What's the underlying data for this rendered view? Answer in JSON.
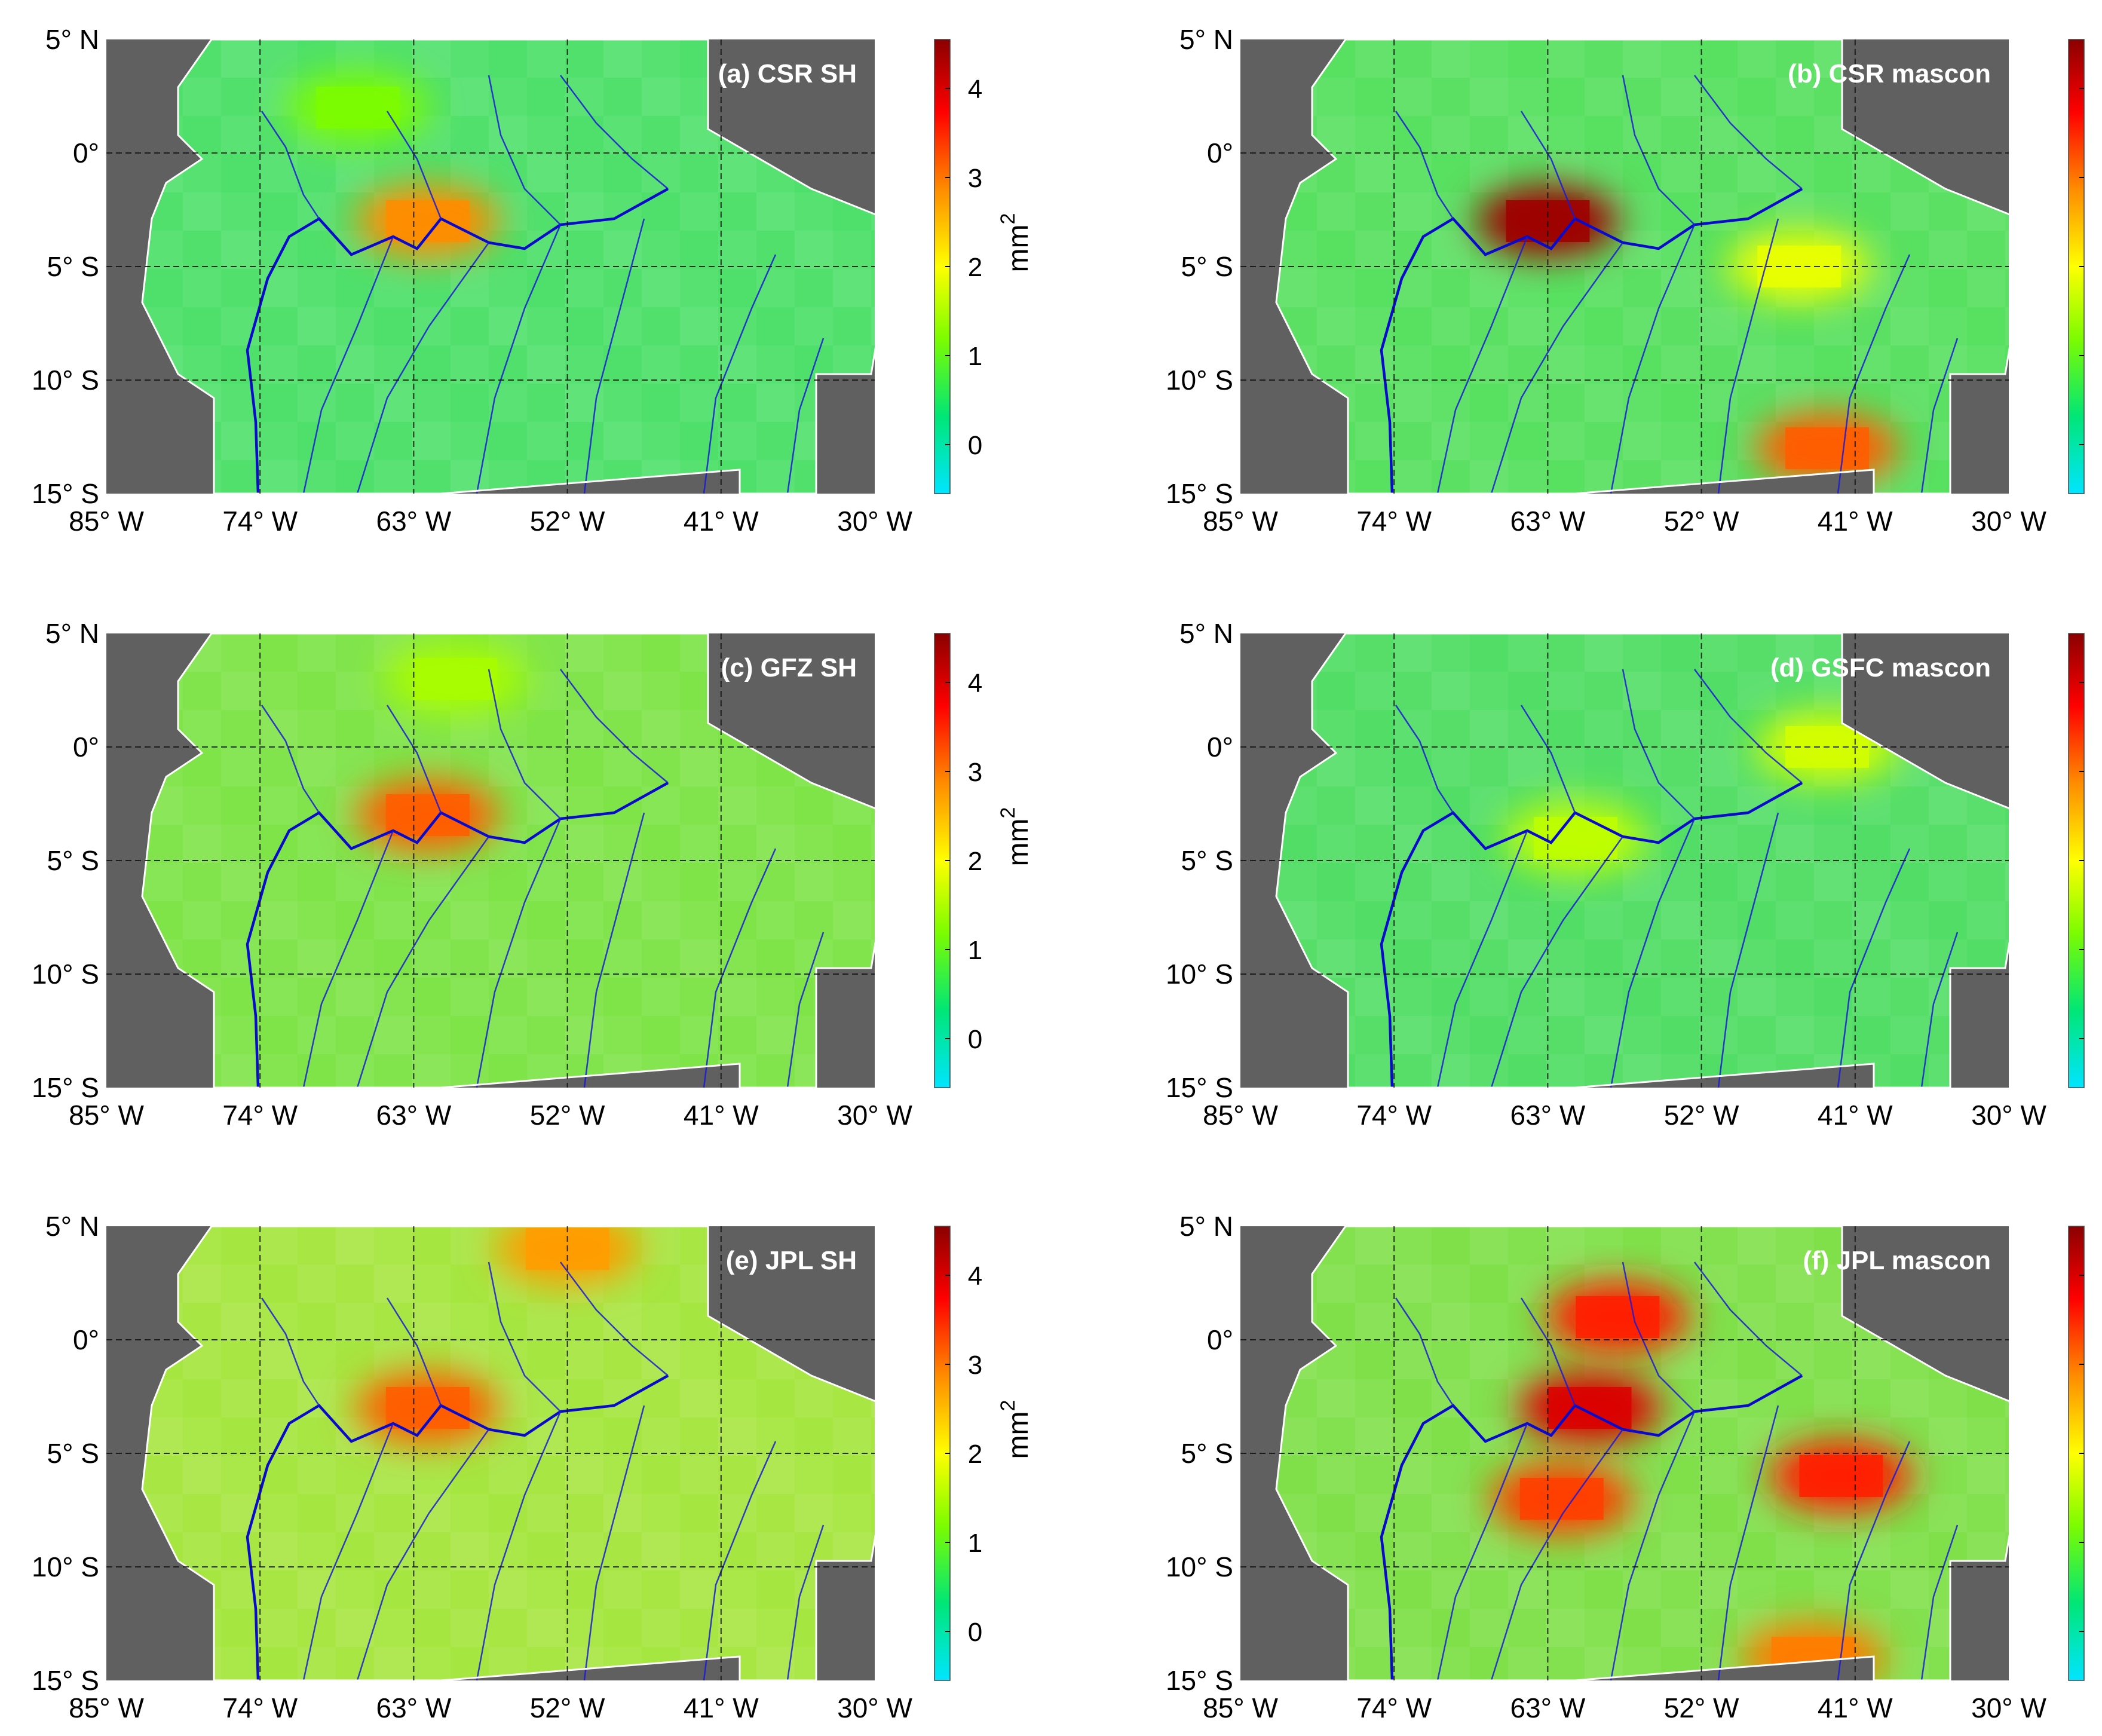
{
  "figure": {
    "unit": "mm",
    "unit_superscript": "2",
    "lat_labels": [
      "5° N",
      "0°",
      "5° S",
      "10° S",
      "15° S"
    ],
    "lon_labels": [
      "85° W",
      "74° W",
      "63° W",
      "52° W",
      "41° W",
      "30° W"
    ],
    "colorbar_ticks": [
      "4",
      "3",
      "2",
      "1",
      "0"
    ],
    "colorbar_colors": [
      "#8b0000",
      "#ff0000",
      "#ff8c00",
      "#ffff00",
      "#7cfc00",
      "#00e676",
      "#00e5ff"
    ],
    "ocean_color": "#606060"
  },
  "panels": [
    {
      "id": "a",
      "title": "(a) CSR SH",
      "background": "#4ee06a",
      "hotspots": [
        {
          "lon": -62,
          "lat": -3,
          "value": 2.3
        },
        {
          "lon": -67,
          "lat": 2,
          "value": 1.0
        }
      ]
    },
    {
      "id": "b",
      "title": "(b) CSR mascon",
      "background": "#58e060",
      "hotspots": [
        {
          "lon": -63,
          "lat": -3,
          "value": 4.3
        },
        {
          "lon": -43,
          "lat": -13,
          "value": 2.6
        },
        {
          "lon": -45,
          "lat": -5,
          "value": 1.5
        }
      ]
    },
    {
      "id": "c",
      "title": "(c) GFZ SH",
      "background": "#7ee448",
      "hotspots": [
        {
          "lon": -62,
          "lat": -3,
          "value": 2.6
        },
        {
          "lon": -60,
          "lat": 3,
          "value": 1.2
        }
      ]
    },
    {
      "id": "d",
      "title": "(d) GSFC mascon",
      "background": "#52de66",
      "hotspots": [
        {
          "lon": -61,
          "lat": -4,
          "value": 1.3
        },
        {
          "lon": -43,
          "lat": 0,
          "value": 1.4
        }
      ]
    },
    {
      "id": "e",
      "title": "(e) JPL SH",
      "background": "#a6e640",
      "hotspots": [
        {
          "lon": -62,
          "lat": -3,
          "value": 2.6
        },
        {
          "lon": -52,
          "lat": 4,
          "value": 2.2
        }
      ]
    },
    {
      "id": "f",
      "title": "(f) JPL mascon",
      "background": "#80e04a",
      "hotspots": [
        {
          "lon": -60,
          "lat": -3,
          "value": 3.6
        },
        {
          "lon": -58,
          "lat": 1,
          "value": 3.0
        },
        {
          "lon": -42,
          "lat": -6,
          "value": 3.0
        },
        {
          "lon": -62,
          "lat": -7,
          "value": 2.8
        },
        {
          "lon": -44,
          "lat": -14,
          "value": 2.4
        }
      ]
    }
  ]
}
